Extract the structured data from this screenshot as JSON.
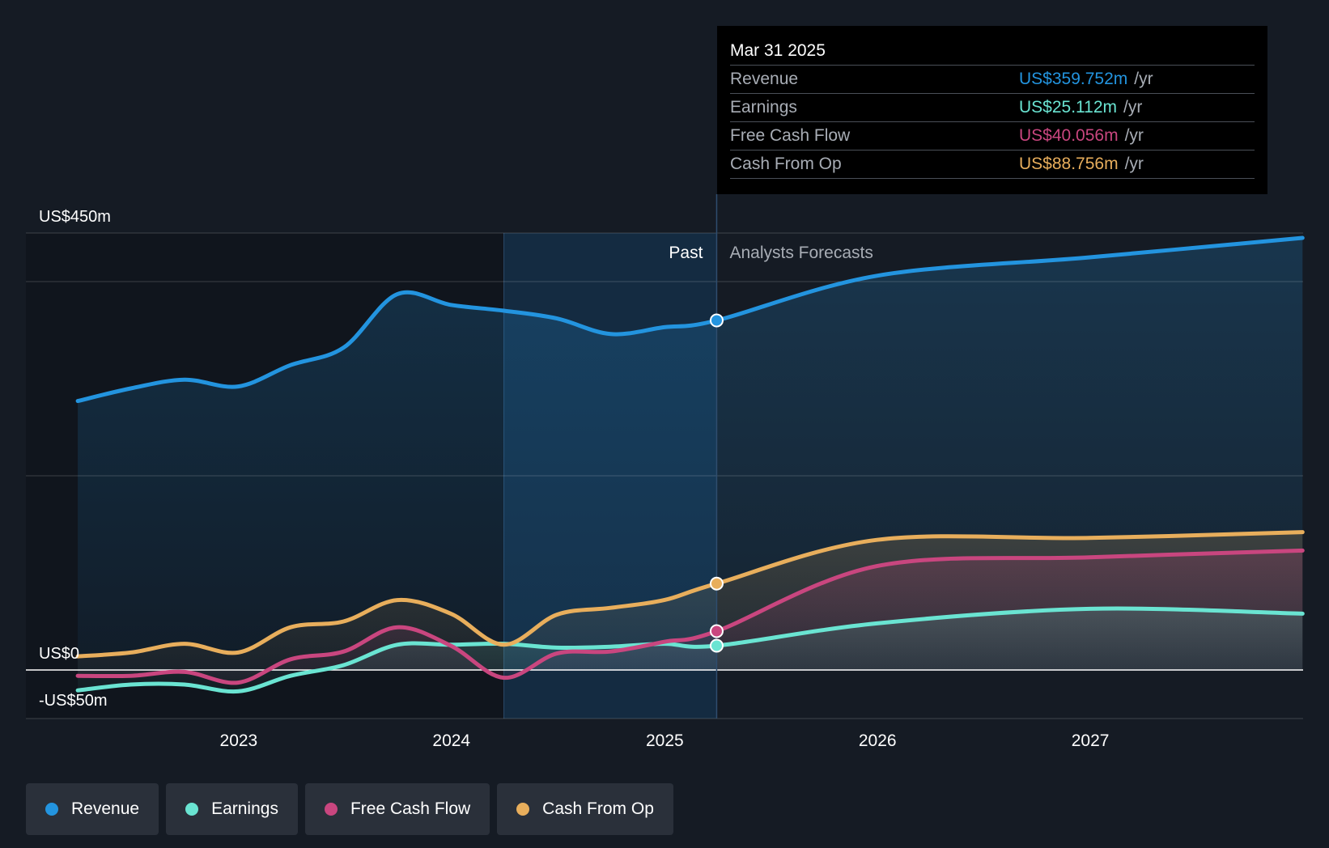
{
  "colors": {
    "revenue": "#2394df",
    "earnings": "#6ae4d2",
    "free_cash_flow": "#c9467f",
    "cash_from_op": "#e8ae5c",
    "background": "#151b24",
    "past_band": "#14395a"
  },
  "tooltip": {
    "date": "Mar 31 2025",
    "rows": [
      {
        "name": "Revenue",
        "value": "US$359.752m",
        "unit": "/yr",
        "color": "#2394df"
      },
      {
        "name": "Earnings",
        "value": "US$25.112m",
        "unit": "/yr",
        "color": "#6ae4d2"
      },
      {
        "name": "Free Cash Flow",
        "value": "US$40.056m",
        "unit": "/yr",
        "color": "#c9467f"
      },
      {
        "name": "Cash From Op",
        "value": "US$88.756m",
        "unit": "/yr",
        "color": "#e8ae5c"
      }
    ]
  },
  "legend": [
    {
      "label": "Revenue",
      "color": "#2394df"
    },
    {
      "label": "Earnings",
      "color": "#6ae4d2"
    },
    {
      "label": "Free Cash Flow",
      "color": "#c9467f"
    },
    {
      "label": "Cash From Op",
      "color": "#e8ae5c"
    }
  ],
  "chart_data": {
    "type": "line",
    "y_unit": "US$m",
    "ylim": [
      -50,
      450
    ],
    "y_tick_labels": [
      {
        "value": 450,
        "label": "US$450m"
      },
      {
        "value": 0,
        "label": "US$0"
      },
      {
        "value": -50,
        "label": "-US$50m"
      }
    ],
    "x_ticks": [
      "2023",
      "2024",
      "2025",
      "2026",
      "2027"
    ],
    "divider_date": "2025-03-31",
    "highlight_start": "2024-03-31",
    "past_label": "Past",
    "forecast_label": "Analysts Forecasts",
    "grid": true,
    "legend_position": "bottom",
    "series": [
      {
        "name": "Revenue",
        "key": "revenue",
        "points": [
          [
            "2022-03-31",
            277
          ],
          [
            "2022-06-30",
            290
          ],
          [
            "2022-09-30",
            299
          ],
          [
            "2022-12-31",
            292
          ],
          [
            "2023-03-31",
            314
          ],
          [
            "2023-06-30",
            332
          ],
          [
            "2023-09-30",
            387
          ],
          [
            "2023-12-31",
            376
          ],
          [
            "2024-03-31",
            370
          ],
          [
            "2024-06-30",
            362
          ],
          [
            "2024-09-30",
            346
          ],
          [
            "2024-12-31",
            353
          ],
          [
            "2025-03-31",
            360
          ],
          [
            "2025-12-31",
            406
          ],
          [
            "2026-12-31",
            425
          ],
          [
            "2027-12-31",
            445
          ]
        ]
      },
      {
        "name": "Earnings",
        "key": "earnings",
        "points": [
          [
            "2022-03-31",
            -21
          ],
          [
            "2022-06-30",
            -15
          ],
          [
            "2022-09-30",
            -15
          ],
          [
            "2022-12-31",
            -22
          ],
          [
            "2023-03-31",
            -6
          ],
          [
            "2023-06-30",
            5
          ],
          [
            "2023-09-30",
            26
          ],
          [
            "2023-12-31",
            26
          ],
          [
            "2024-03-31",
            27
          ],
          [
            "2024-06-30",
            23
          ],
          [
            "2024-09-30",
            24
          ],
          [
            "2024-12-31",
            27
          ],
          [
            "2025-03-31",
            25
          ],
          [
            "2025-12-31",
            48
          ],
          [
            "2026-12-31",
            63
          ],
          [
            "2027-12-31",
            58
          ]
        ]
      },
      {
        "name": "Free Cash Flow",
        "key": "free_cash_flow",
        "points": [
          [
            "2022-03-31",
            -6
          ],
          [
            "2022-06-30",
            -6
          ],
          [
            "2022-09-30",
            -2
          ],
          [
            "2022-12-31",
            -13
          ],
          [
            "2023-03-31",
            11
          ],
          [
            "2023-06-30",
            19
          ],
          [
            "2023-09-30",
            44
          ],
          [
            "2023-12-31",
            25
          ],
          [
            "2024-03-31",
            -8
          ],
          [
            "2024-06-30",
            17
          ],
          [
            "2024-09-30",
            19
          ],
          [
            "2024-12-31",
            29
          ],
          [
            "2025-03-31",
            40
          ],
          [
            "2025-12-31",
            107
          ],
          [
            "2026-12-31",
            116
          ],
          [
            "2027-12-31",
            123
          ]
        ]
      },
      {
        "name": "Cash From Op",
        "key": "cash_from_op",
        "points": [
          [
            "2022-03-31",
            14
          ],
          [
            "2022-06-30",
            18
          ],
          [
            "2022-09-30",
            27
          ],
          [
            "2022-12-31",
            18
          ],
          [
            "2023-03-31",
            44
          ],
          [
            "2023-06-30",
            50
          ],
          [
            "2023-09-30",
            72
          ],
          [
            "2023-12-31",
            58
          ],
          [
            "2024-03-31",
            26
          ],
          [
            "2024-06-30",
            57
          ],
          [
            "2024-09-30",
            64
          ],
          [
            "2024-12-31",
            72
          ],
          [
            "2025-03-31",
            89
          ],
          [
            "2025-12-31",
            134
          ],
          [
            "2026-12-31",
            136
          ],
          [
            "2027-12-31",
            142
          ]
        ]
      }
    ]
  }
}
